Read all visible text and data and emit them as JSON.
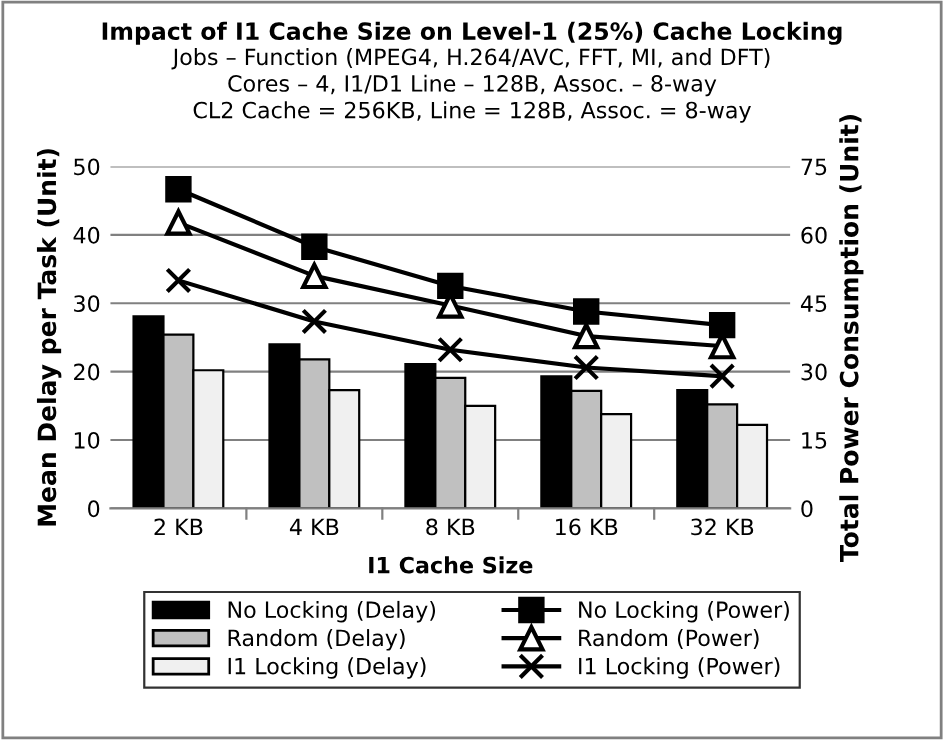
{
  "chart_data": {
    "type": "bar",
    "title": "Impact of I1 Cache Size on Level-1 (25%) Cache Locking",
    "subtitle": "Jobs – Function (MPEG4, H.264/AVC, FFT, MI, and DFT)\nCores – 4, I1/D1 Line – 128B, Assoc. – 8-way\nCL2 Cache = 256KB, Line = 128B, Assoc. = 8-way",
    "xlabel": "I1 Cache Size",
    "ylabel": "Mean Delay per Task (Unit)",
    "y2label": "Total Power Consumption (Unit)",
    "categories": [
      "2 KB",
      "4 KB",
      "8 KB",
      "16 KB",
      "32 KB"
    ],
    "series": [
      {
        "name": "No Locking (Delay)",
        "color": "#000000",
        "values": [
          28.1,
          24.0,
          21.1,
          19.3,
          17.3
        ]
      },
      {
        "name": "Random (Delay)",
        "color": "#c0c0c0",
        "values": [
          25.4,
          21.8,
          19.1,
          17.2,
          15.2
        ]
      },
      {
        "name": "I1 Locking (Delay)",
        "color": "#f0f0f0",
        "values": [
          20.2,
          17.3,
          15.0,
          13.8,
          12.2
        ]
      },
      {
        "name": "No Locking (Power)",
        "type": "line",
        "axis": "y2",
        "marker": "square",
        "color": "#000000",
        "values": [
          70,
          57.4,
          48.8,
          43.2,
          40.2
        ]
      },
      {
        "name": "Random (Power)",
        "type": "line",
        "axis": "y2",
        "marker": "triangle",
        "color": "#000000",
        "values": [
          62.7,
          51,
          44.5,
          37.8,
          35.6
        ]
      },
      {
        "name": "I1 Locking (Power)",
        "type": "line",
        "axis": "y2",
        "marker": "cross",
        "color": "#000000",
        "values": [
          50,
          41,
          34.8,
          30.9,
          29
        ]
      }
    ],
    "ylim": [
      0,
      50
    ],
    "yticks": [
      0,
      10,
      20,
      30,
      40,
      50
    ],
    "y2lim": [
      0,
      75
    ],
    "y2ticks": [
      0,
      15,
      30,
      45,
      60,
      75
    ],
    "grid": "y",
    "legend": "bottom"
  }
}
